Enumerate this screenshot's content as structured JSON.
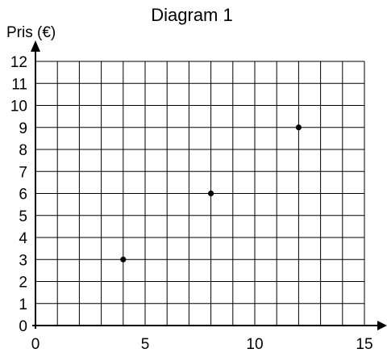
{
  "chart_data": {
    "type": "scatter",
    "title": "Diagram 1",
    "ylabel": "Pris (€)",
    "xlabel": "",
    "xlim": [
      0,
      15
    ],
    "ylim": [
      0,
      12
    ],
    "x_ticks": [
      "0",
      "5",
      "10",
      "15"
    ],
    "y_ticks": [
      "0",
      "1",
      "2",
      "3",
      "4",
      "5",
      "6",
      "7",
      "8",
      "9",
      "10",
      "11",
      "12"
    ],
    "grid": true,
    "grid_step_x": 1,
    "grid_step_y": 1,
    "points": [
      {
        "x": 4,
        "y": 3
      },
      {
        "x": 8,
        "y": 6
      },
      {
        "x": 12,
        "y": 9
      }
    ]
  }
}
